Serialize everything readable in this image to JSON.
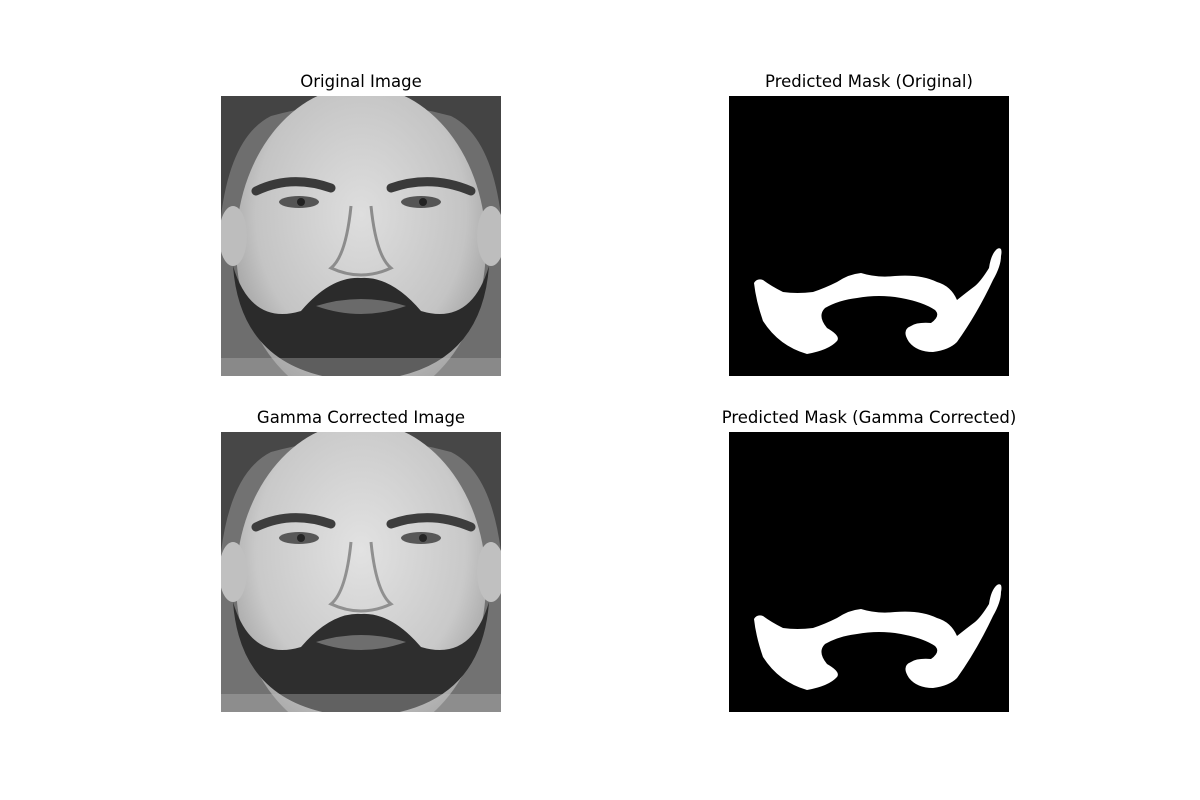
{
  "figure": {
    "panels": [
      {
        "title": "Original Image",
        "kind": "face-photo"
      },
      {
        "title": "Predicted Mask (Original)",
        "kind": "beard-mask"
      },
      {
        "title": "Gamma Corrected Image",
        "kind": "face-photo"
      },
      {
        "title": "Predicted Mask (Gamma Corrected)",
        "kind": "beard-mask"
      }
    ]
  },
  "colors": {
    "mask_background": "#000000",
    "mask_foreground": "#ffffff",
    "photo_skin": "#c9c9c9",
    "photo_hair": "#3a3a3a"
  }
}
